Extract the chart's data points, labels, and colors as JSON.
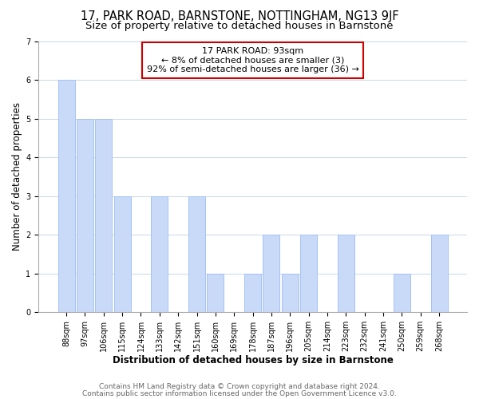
{
  "title_line1": "17, PARK ROAD, BARNSTONE, NOTTINGHAM, NG13 9JF",
  "title_line2": "Size of property relative to detached houses in Barnstone",
  "xlabel": "Distribution of detached houses by size in Barnstone",
  "ylabel": "Number of detached properties",
  "footer_line1": "Contains HM Land Registry data © Crown copyright and database right 2024.",
  "footer_line2": "Contains public sector information licensed under the Open Government Licence v3.0.",
  "annotation_title": "17 PARK ROAD: 93sqm",
  "annotation_line1": "← 8% of detached houses are smaller (3)",
  "annotation_line2": "92% of semi-detached houses are larger (36) →",
  "bar_labels": [
    "88sqm",
    "97sqm",
    "106sqm",
    "115sqm",
    "124sqm",
    "133sqm",
    "142sqm",
    "151sqm",
    "160sqm",
    "169sqm",
    "178sqm",
    "187sqm",
    "196sqm",
    "205sqm",
    "214sqm",
    "223sqm",
    "232sqm",
    "241sqm",
    "250sqm",
    "259sqm",
    "268sqm"
  ],
  "bar_values": [
    6,
    5,
    5,
    3,
    0,
    3,
    0,
    3,
    1,
    0,
    1,
    2,
    1,
    2,
    0,
    2,
    0,
    0,
    1,
    0,
    2
  ],
  "bar_color": "#c9daf8",
  "bar_edge_color": "#a4c2f4",
  "annotation_box_color": "#ffffff",
  "annotation_box_edge": "#cc0000",
  "ylim": [
    0,
    7
  ],
  "yticks": [
    0,
    1,
    2,
    3,
    4,
    5,
    6,
    7
  ],
  "grid_color": "#c8d8e8",
  "background_color": "#ffffff",
  "title_fontsize": 10.5,
  "subtitle_fontsize": 9.5,
  "axis_label_fontsize": 8.5,
  "tick_fontsize": 7,
  "annotation_fontsize": 8,
  "footer_fontsize": 6.5
}
